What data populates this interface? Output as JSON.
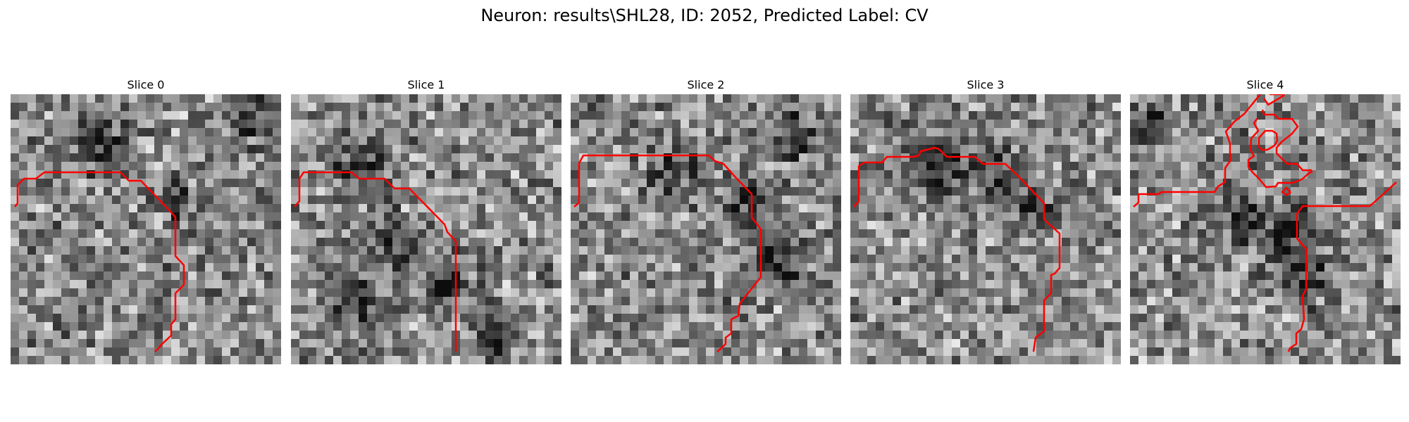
{
  "figure": {
    "title": "Neuron: results\\SHL28, ID: 2052, Predicted Label: CV"
  },
  "panels": [
    {
      "title": "Slice 0"
    },
    {
      "title": "Slice 1"
    },
    {
      "title": "Slice 2"
    },
    {
      "title": "Slice 3"
    },
    {
      "title": "Slice 4"
    }
  ],
  "colors": {
    "contour": "#ff0000",
    "background": "#ffffff"
  }
}
